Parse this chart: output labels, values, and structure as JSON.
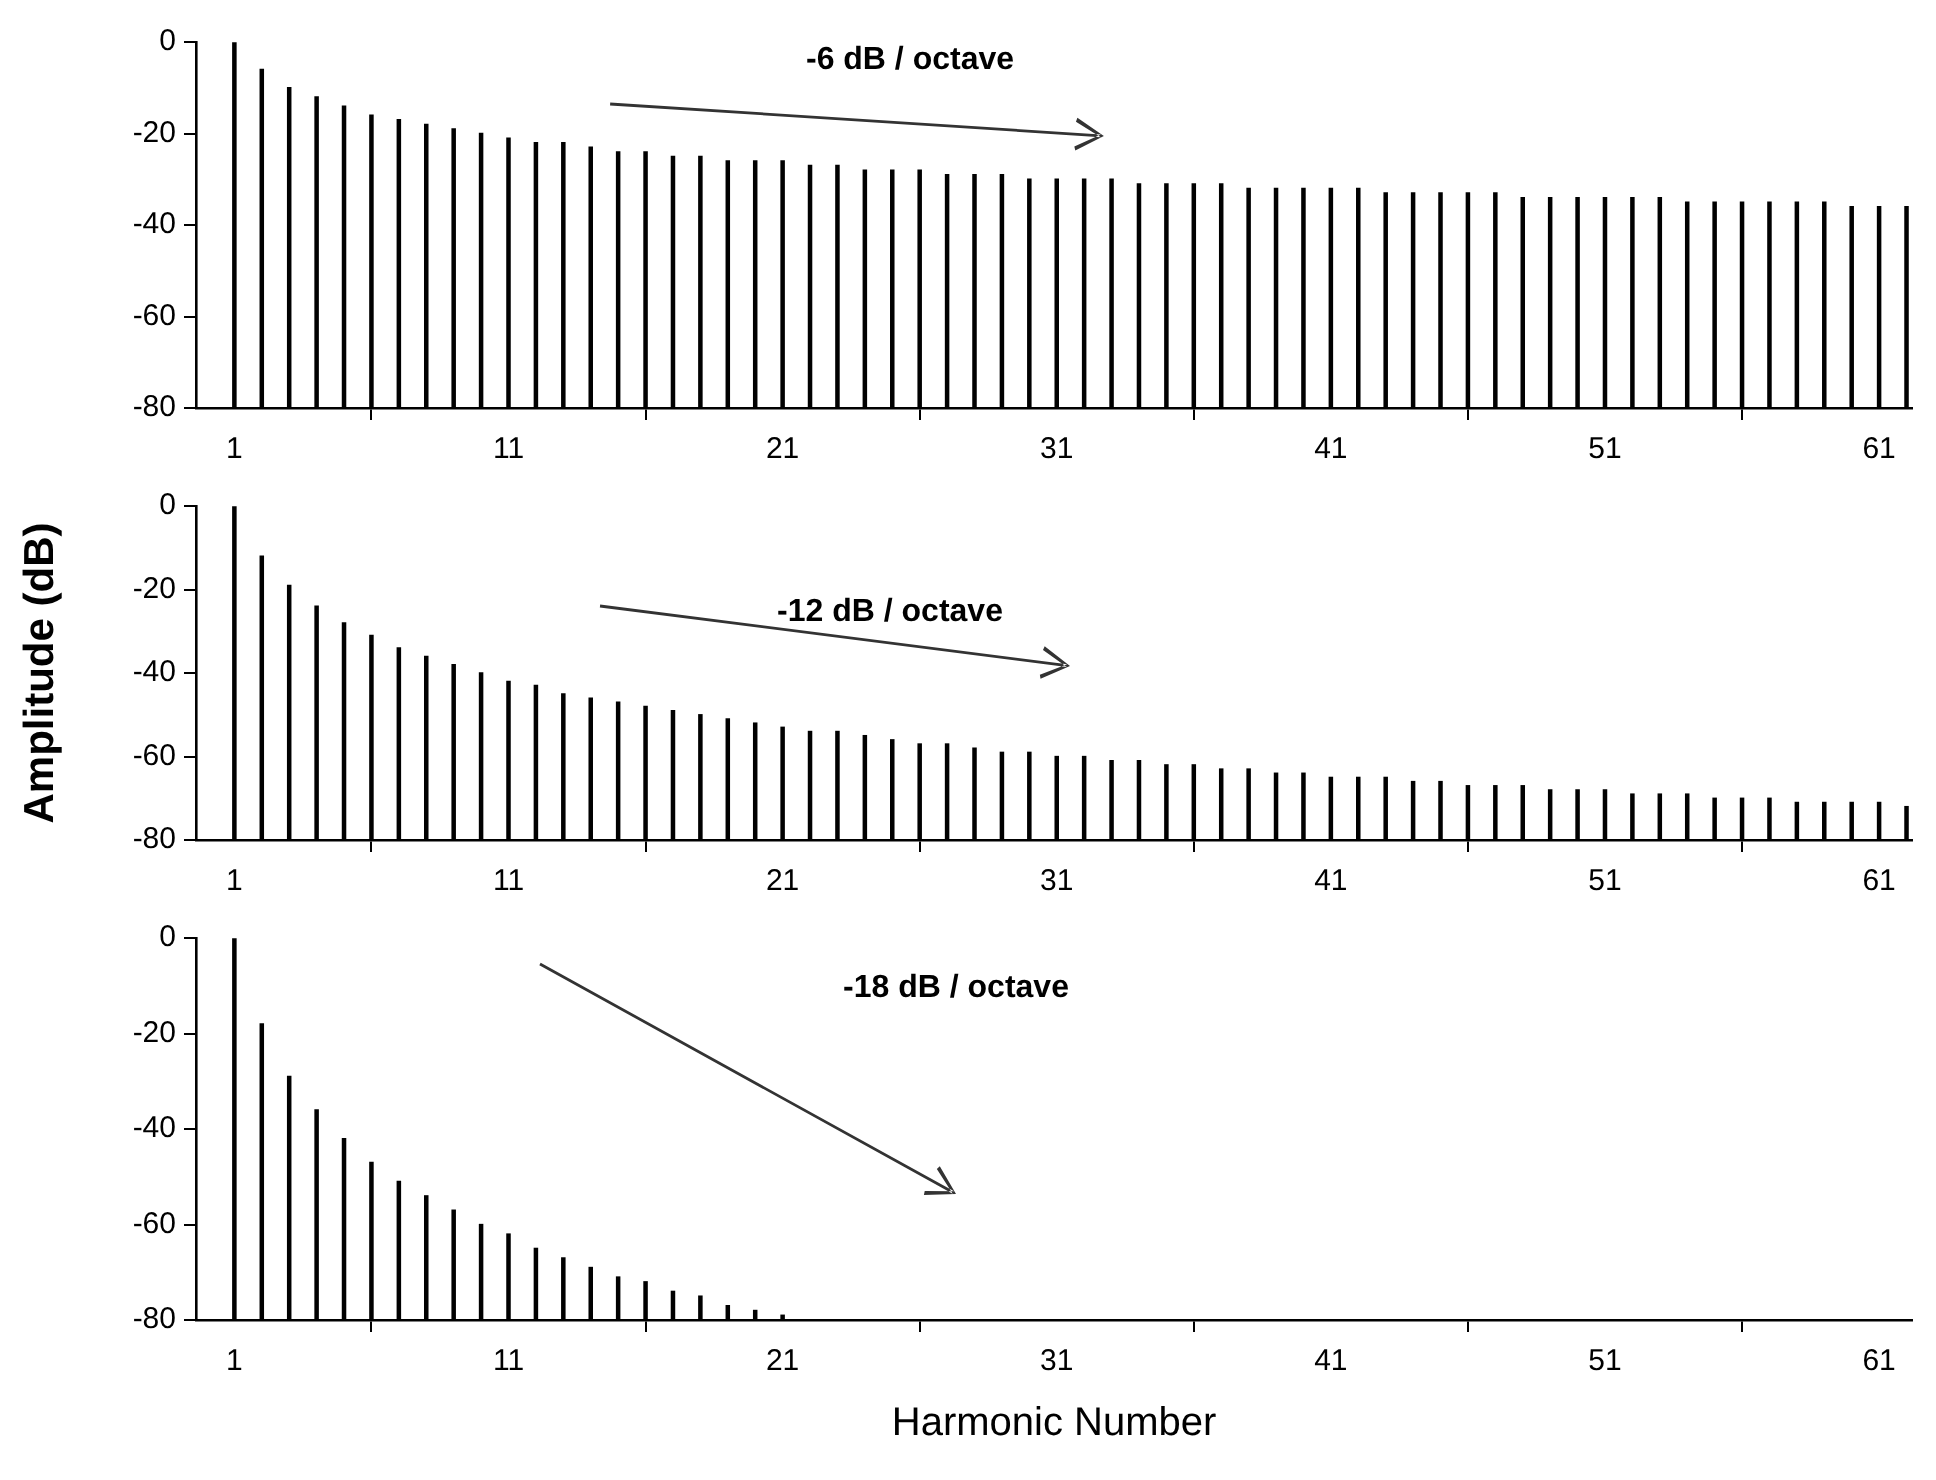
{
  "chart_data": [
    {
      "type": "bar",
      "annotations": [
        "-6 dB / octave"
      ],
      "x": [
        1,
        2,
        3,
        4,
        5,
        6,
        7,
        8,
        9,
        10,
        11,
        12,
        13,
        14,
        15,
        16,
        17,
        18,
        19,
        20,
        21,
        22,
        23,
        24,
        25,
        26,
        27,
        28,
        29,
        30,
        31,
        32,
        33,
        34,
        35,
        36,
        37,
        38,
        39,
        40,
        41,
        42,
        43,
        44,
        45,
        46,
        47,
        48,
        49,
        50,
        51,
        52,
        53,
        54,
        55,
        56,
        57,
        58,
        59,
        60,
        61,
        62
      ],
      "base": [
        -80,
        -80,
        -80,
        -80,
        -80,
        -80,
        -80,
        -80,
        -80,
        -80,
        -80,
        -80,
        -80,
        -80,
        -80,
        -80,
        -80,
        -80,
        -80,
        -80,
        -80,
        -80,
        -80,
        -80,
        -80,
        -80,
        -80,
        -80,
        -80,
        -80,
        -80,
        -80,
        -80,
        -80,
        -80,
        -80,
        -80,
        -80,
        -80,
        -80,
        -80,
        -80,
        -80,
        -80,
        -80,
        -80,
        -80,
        -80,
        -80,
        -80,
        -80,
        -80,
        -80,
        -80,
        -80,
        -80,
        -80,
        -80,
        -80,
        -80,
        -80,
        -80
      ],
      "values": [
        80,
        74,
        70,
        68,
        66,
        64,
        63,
        62,
        61,
        60,
        59,
        58,
        58,
        57,
        56,
        56,
        55,
        55,
        54,
        54,
        54,
        53,
        53,
        52,
        52,
        52,
        51,
        51,
        51,
        50,
        50,
        50,
        50,
        49,
        49,
        49,
        49,
        48,
        48,
        48,
        48,
        48,
        47,
        47,
        47,
        47,
        47,
        46,
        46,
        46,
        46,
        46,
        46,
        45,
        45,
        45,
        45,
        45,
        45,
        44,
        44,
        44
      ],
      "color": "#000000",
      "xlim": [
        -0.4,
        62.2
      ],
      "xticks": [
        1,
        11,
        21,
        31,
        41,
        51,
        61
      ],
      "ylim": [
        -80,
        0
      ],
      "yticks": [
        -80,
        -60,
        -40,
        -20,
        0
      ],
      "grid": false
    },
    {
      "type": "bar",
      "ylabel": "Amplitude (dB)",
      "annotations": [
        "-12 dB / octave"
      ],
      "x": [
        1,
        2,
        3,
        4,
        5,
        6,
        7,
        8,
        9,
        10,
        11,
        12,
        13,
        14,
        15,
        16,
        17,
        18,
        19,
        20,
        21,
        22,
        23,
        24,
        25,
        26,
        27,
        28,
        29,
        30,
        31,
        32,
        33,
        34,
        35,
        36,
        37,
        38,
        39,
        40,
        41,
        42,
        43,
        44,
        45,
        46,
        47,
        48,
        49,
        50,
        51,
        52,
        53,
        54,
        55,
        56,
        57,
        58,
        59,
        60,
        61,
        62
      ],
      "base": [
        -80,
        -80,
        -80,
        -80,
        -80,
        -80,
        -80,
        -80,
        -80,
        -80,
        -80,
        -80,
        -80,
        -80,
        -80,
        -80,
        -80,
        -80,
        -80,
        -80,
        -80,
        -80,
        -80,
        -80,
        -80,
        -80,
        -80,
        -80,
        -80,
        -80,
        -80,
        -80,
        -80,
        -80,
        -80,
        -80,
        -80,
        -80,
        -80,
        -80,
        -80,
        -80,
        -80,
        -80,
        -80,
        -80,
        -80,
        -80,
        -80,
        -80,
        -80,
        -80,
        -80,
        -80,
        -80,
        -80,
        -80,
        -80,
        -80,
        -80,
        -80,
        -80
      ],
      "values": [
        80,
        68,
        61,
        56,
        52,
        49,
        46,
        44,
        42,
        40,
        38,
        37,
        35,
        34,
        33,
        32,
        31,
        30,
        29,
        28,
        27,
        26,
        26,
        25,
        24,
        23,
        23,
        22,
        21,
        21,
        20,
        20,
        19,
        19,
        18,
        18,
        17,
        17,
        16,
        16,
        15,
        15,
        15,
        14,
        14,
        13,
        13,
        13,
        12,
        12,
        12,
        11,
        11,
        11,
        10,
        10,
        10,
        9,
        9,
        9,
        9,
        8
      ],
      "color": "#000000",
      "xlim": [
        -0.4,
        62.2
      ],
      "xticks": [
        1,
        11,
        21,
        31,
        41,
        51,
        61
      ],
      "ylim": [
        -80,
        0
      ],
      "yticks": [
        -80,
        -60,
        -40,
        -20,
        0
      ],
      "grid": false
    },
    {
      "type": "bar",
      "xlabel": "Harmonic Number",
      "annotations": [
        "-18 dB / octave"
      ],
      "x": [
        1,
        2,
        3,
        4,
        5,
        6,
        7,
        8,
        9,
        10,
        11,
        12,
        13,
        14,
        15,
        16,
        17,
        18,
        19,
        20,
        21
      ],
      "base": [
        -80,
        -80,
        -80,
        -80,
        -80,
        -80,
        -80,
        -80,
        -80,
        -80,
        -80,
        -80,
        -80,
        -80,
        -80,
        -80,
        -80,
        -80,
        -80,
        -80,
        -80
      ],
      "values": [
        80,
        62,
        51,
        44,
        38,
        33,
        29,
        26,
        23,
        20,
        18,
        15,
        13,
        11,
        9,
        8,
        6,
        5,
        3,
        2,
        1
      ],
      "color": "#000000",
      "xlim": [
        -0.4,
        62.2
      ],
      "xticks": [
        1,
        11,
        21,
        31,
        41,
        51,
        61
      ],
      "ylim": [
        -80,
        0
      ],
      "yticks": [
        -80,
        -60,
        -40,
        -20,
        0
      ],
      "grid": false
    }
  ]
}
